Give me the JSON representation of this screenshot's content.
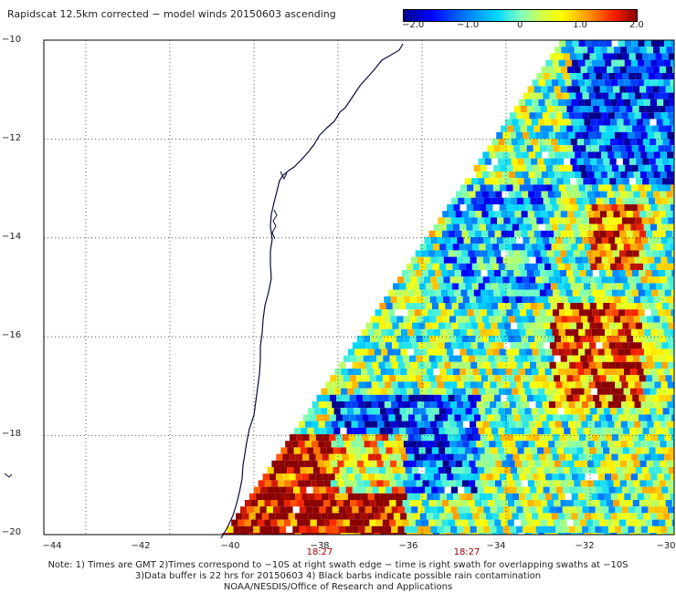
{
  "title": "Rapidscat 12.5km corrected − model winds 20150603 ascending",
  "colorbar": {
    "ticks": [
      "−2.0",
      "−1.0",
      "0",
      "1.0",
      "2.0"
    ],
    "tick_values": [
      -2.0,
      -1.0,
      0,
      1.0,
      2.0
    ],
    "range": [
      -2.0,
      2.0
    ],
    "colors": [
      "#00008b",
      "#0000ff",
      "#00d8ff",
      "#ffff00",
      "#ff2000",
      "#8b0000"
    ]
  },
  "map": {
    "lon_range": [
      -45,
      -30
    ],
    "lat_range": [
      -20,
      -10
    ],
    "lon_ticks": [
      -44,
      -42,
      -40,
      -38,
      -36,
      -34,
      -32,
      -30
    ],
    "lat_ticks": [
      -10,
      -12,
      -14,
      -16,
      -18,
      -20
    ],
    "lon_labels": [
      "−44",
      "−42",
      "−40",
      "−38",
      "−36",
      "−34",
      "−32",
      "−30"
    ],
    "lat_labels": [
      "−10",
      "−12",
      "−14",
      "−16",
      "−18",
      "−20"
    ],
    "grid": true,
    "coastline": "dark-navy",
    "swath_times": [
      {
        "label": "18:27",
        "lon": -38
      },
      {
        "label": "18:27",
        "lon": -34.5
      }
    ]
  },
  "notes": [
    "Note: 1) Times are GMT 2)Times correspond to −10S at right swath edge − time is right swath for overlapping swaths at −10S",
    "3)Data buffer is 22 hrs for 20150603 4) Black barbs indicate possible rain contamination",
    "NOAA/NESDIS/Office of Research and Applications"
  ]
}
